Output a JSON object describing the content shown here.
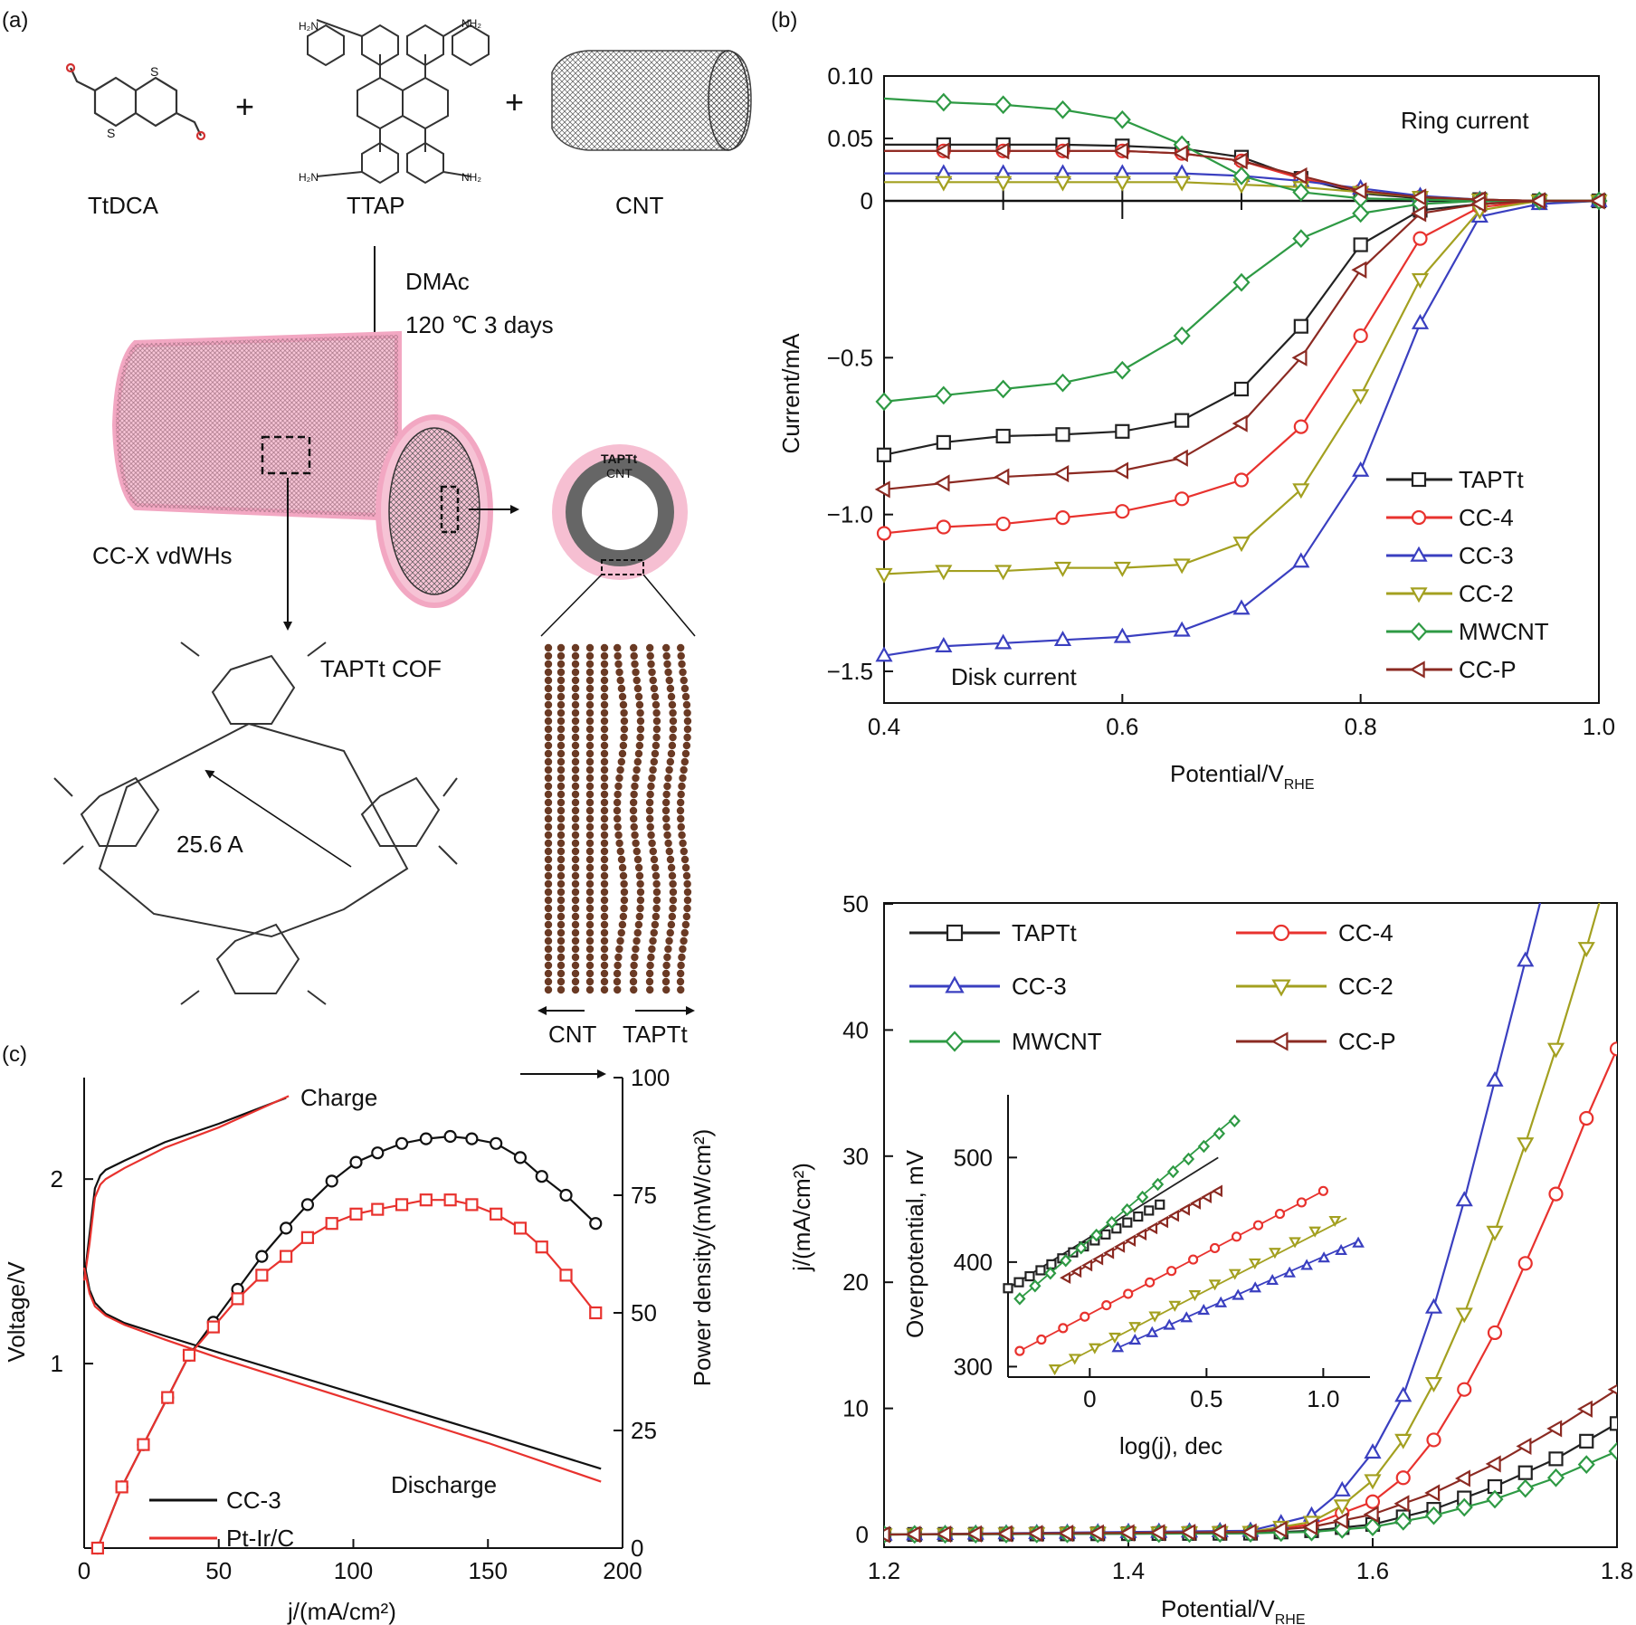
{
  "panel_labels": {
    "a": "(a)",
    "b": "(b)",
    "c": "(c)"
  },
  "scheme": {
    "reagents": [
      "TtDCA",
      "TTAP",
      "CNT"
    ],
    "plus": "+",
    "conditions": [
      "DMAc",
      "120 ℃  3 days"
    ],
    "product": "CC-X vdWHs",
    "cof_label": "TAPTt COF",
    "pore_size": "25.6 A",
    "ring_outer": "TAPTt",
    "ring_inner": "CNT",
    "slab_labels": [
      "CNT",
      "TAPTt"
    ]
  },
  "icons": [
    "thiophene-aldehyde-molecule-icon",
    "tetra-amine-pyrene-molecule-icon",
    "carbon-nanotube-icon",
    "cof-coated-nanotube-icon",
    "cof-hexagon-structure-icon",
    "cross-section-ring-icon",
    "atomic-slab-icon"
  ],
  "colors": {
    "TAPTt": "#222222",
    "CC-4": "#e8322e",
    "CC-3": "#3a3fc0",
    "CC-2": "#a3a020",
    "MWCNT": "#2e9a44",
    "CC-P": "#8b2a22",
    "pink": "#f2a7c2"
  },
  "chart_data": [
    {
      "id": "b",
      "type": "line",
      "xlabel": "Potential/V",
      "xlabel_sub": "RHE",
      "ylabel": "Current/mA",
      "xlim": [
        0.4,
        1.0
      ],
      "ylim": [
        -1.57,
        0.1
      ],
      "xticks": [
        0.4,
        0.6,
        0.8,
        1.0
      ],
      "xtick_labels": [
        "0.4",
        "0.6",
        "0.8",
        "1.0"
      ],
      "yticks": [
        0.1,
        0.05,
        0,
        -0.5,
        -1.0,
        -1.5
      ],
      "ytick_labels": [
        "0.10",
        "0.05",
        "0",
        "−0.5",
        "−1.0",
        "−1.5"
      ],
      "annotations": [
        "Ring current",
        "Disk current"
      ],
      "legend": [
        "TAPTt",
        "CC-4",
        "CC-3",
        "CC-2",
        "MWCNT",
        "CC-P"
      ],
      "x": [
        0.4,
        0.45,
        0.5,
        0.55,
        0.6,
        0.65,
        0.7,
        0.75,
        0.8,
        0.85,
        0.9,
        0.95,
        1.0
      ],
      "series": [
        {
          "name": "TAPTt",
          "marker": "square",
          "ring": [
            0.045,
            0.045,
            0.045,
            0.045,
            0.044,
            0.042,
            0.035,
            0.018,
            0.006,
            0.002,
            0.001,
            0.0,
            0.0
          ],
          "disk": [
            -0.81,
            -0.77,
            -0.75,
            -0.745,
            -0.735,
            -0.7,
            -0.6,
            -0.4,
            -0.14,
            -0.03,
            -0.01,
            0.0,
            0.0
          ]
        },
        {
          "name": "CC-4",
          "marker": "circle",
          "ring": [
            0.04,
            0.04,
            0.04,
            0.04,
            0.04,
            0.038,
            0.032,
            0.018,
            0.008,
            0.003,
            0.001,
            0.0,
            0.0
          ],
          "disk": [
            -1.06,
            -1.04,
            -1.03,
            -1.01,
            -0.99,
            -0.95,
            -0.89,
            -0.72,
            -0.43,
            -0.12,
            -0.02,
            0.0,
            0.0
          ]
        },
        {
          "name": "CC-3",
          "marker": "triangle-up",
          "ring": [
            0.022,
            0.022,
            0.022,
            0.022,
            0.022,
            0.022,
            0.02,
            0.016,
            0.01,
            0.004,
            0.001,
            0.0,
            0.0
          ],
          "disk": [
            -1.45,
            -1.42,
            -1.41,
            -1.4,
            -1.39,
            -1.37,
            -1.3,
            -1.15,
            -0.86,
            -0.39,
            -0.05,
            -0.01,
            0.0
          ]
        },
        {
          "name": "CC-2",
          "marker": "triangle-down",
          "ring": [
            0.015,
            0.015,
            0.015,
            0.015,
            0.015,
            0.015,
            0.013,
            0.011,
            0.007,
            0.003,
            0.001,
            0.0,
            0.0
          ],
          "disk": [
            -1.19,
            -1.18,
            -1.18,
            -1.17,
            -1.17,
            -1.16,
            -1.09,
            -0.92,
            -0.62,
            -0.25,
            -0.03,
            0.0,
            0.0
          ]
        },
        {
          "name": "MWCNT",
          "marker": "diamond",
          "ring": [
            0.082,
            0.079,
            0.077,
            0.073,
            0.065,
            0.045,
            0.02,
            0.007,
            0.002,
            0.001,
            0.0,
            0.0,
            0.0
          ],
          "disk": [
            -0.64,
            -0.62,
            -0.6,
            -0.58,
            -0.54,
            -0.43,
            -0.26,
            -0.12,
            -0.04,
            -0.01,
            0.0,
            0.0,
            0.0
          ]
        },
        {
          "name": "CC-P",
          "marker": "triangle-left",
          "ring": [
            0.04,
            0.04,
            0.04,
            0.04,
            0.04,
            0.038,
            0.032,
            0.02,
            0.008,
            0.003,
            0.001,
            0.0,
            0.0
          ],
          "disk": [
            -0.92,
            -0.9,
            -0.88,
            -0.87,
            -0.86,
            -0.82,
            -0.71,
            -0.5,
            -0.22,
            -0.04,
            -0.01,
            0.0,
            0.0
          ]
        }
      ]
    },
    {
      "id": "c",
      "type": "line",
      "xlabel": "j/(mA/cm²)",
      "ylabel_left": "Voltage/V",
      "ylabel_right": "Power density/(mW/cm²)",
      "xlim": [
        0,
        200
      ],
      "ylim_left": [
        0,
        2.55
      ],
      "ylim_right": [
        0,
        100
      ],
      "xticks": [
        0,
        50,
        100,
        150,
        200
      ],
      "yticks_left": [
        1,
        2
      ],
      "yticks_right": [
        0,
        25,
        50,
        75,
        100
      ],
      "annotations": [
        "Charge",
        "Discharge"
      ],
      "legend": [
        "CC-3",
        "Pt-Ir/C"
      ],
      "series": [
        {
          "name": "CC-3 charge",
          "color": "#111111",
          "x": [
            0,
            2,
            4,
            6,
            8,
            15,
            30,
            50,
            75
          ],
          "y": [
            1.45,
            1.7,
            1.95,
            2.02,
            2.05,
            2.1,
            2.2,
            2.3,
            2.44
          ]
        },
        {
          "name": "Pt-Ir/C charge",
          "color": "#e8322e",
          "x": [
            0,
            2,
            4,
            6,
            8,
            15,
            30,
            50,
            76
          ],
          "y": [
            1.45,
            1.65,
            1.9,
            1.97,
            2.0,
            2.06,
            2.17,
            2.28,
            2.45
          ]
        },
        {
          "name": "CC-3 discharge",
          "color": "#111111",
          "x": [
            0,
            2,
            4,
            8,
            15,
            30,
            50,
            100,
            150,
            192
          ],
          "y": [
            1.55,
            1.4,
            1.33,
            1.27,
            1.22,
            1.15,
            1.06,
            0.84,
            0.62,
            0.43
          ]
        },
        {
          "name": "Pt-Ir/C discharge",
          "color": "#e8322e",
          "x": [
            0,
            2,
            4,
            8,
            15,
            30,
            50,
            100,
            150,
            192
          ],
          "y": [
            1.52,
            1.38,
            1.31,
            1.26,
            1.21,
            1.13,
            1.03,
            0.8,
            0.57,
            0.36
          ]
        },
        {
          "name": "CC-3 power",
          "color": "#111111",
          "marker": "circle",
          "x": [
            5,
            14,
            22,
            31,
            39,
            48,
            57,
            66,
            75,
            83,
            92,
            101,
            109,
            118,
            127,
            136,
            144,
            153,
            162,
            170,
            179,
            190
          ],
          "y": [
            0,
            13,
            22,
            32,
            41,
            48,
            55,
            62,
            68,
            73,
            78,
            82,
            84,
            86,
            87,
            87.5,
            87,
            86,
            83,
            79,
            75,
            69
          ]
        },
        {
          "name": "Pt-Ir/C power",
          "color": "#e8322e",
          "marker": "square",
          "x": [
            5,
            14,
            22,
            31,
            39,
            48,
            57,
            66,
            75,
            83,
            92,
            101,
            109,
            118,
            127,
            136,
            144,
            153,
            162,
            170,
            179,
            190
          ],
          "y": [
            0,
            13,
            22,
            32,
            41,
            47,
            53,
            58,
            62,
            66,
            69,
            71,
            72,
            73,
            74,
            74,
            73,
            71,
            68,
            64,
            58,
            50
          ]
        }
      ]
    },
    {
      "id": "d",
      "type": "line",
      "xlabel": "Potential/V",
      "xlabel_sub": "RHE",
      "ylabel": "j/(mA/cm²)",
      "xlim": [
        1.2,
        1.8
      ],
      "ylim": [
        -1,
        50
      ],
      "xticks": [
        1.2,
        1.4,
        1.6,
        1.8
      ],
      "yticks": [
        0,
        10,
        20,
        30,
        40,
        50
      ],
      "legend": [
        "TAPTt",
        "CC-4",
        "CC-3",
        "CC-2",
        "MWCNT",
        "CC-P"
      ],
      "series": [
        {
          "name": "TAPTt",
          "marker": "square",
          "x": [
            1.2,
            1.5,
            1.55,
            1.6,
            1.65,
            1.7,
            1.75,
            1.8
          ],
          "y": [
            0,
            0.1,
            0.3,
            0.8,
            2.0,
            3.8,
            6.0,
            8.8
          ]
        },
        {
          "name": "CC-4",
          "marker": "circle",
          "x": [
            1.2,
            1.5,
            1.55,
            1.6,
            1.625,
            1.65,
            1.675,
            1.7,
            1.725,
            1.75,
            1.775,
            1.8
          ],
          "y": [
            0,
            0.2,
            0.8,
            2.6,
            4.5,
            7.5,
            11.5,
            16.0,
            21.5,
            27.0,
            33.0,
            38.5
          ]
        },
        {
          "name": "CC-3",
          "marker": "triangle-up",
          "x": [
            1.2,
            1.5,
            1.55,
            1.575,
            1.6,
            1.625,
            1.65,
            1.675,
            1.7,
            1.725,
            1.75
          ],
          "y": [
            0,
            0.3,
            1.5,
            3.5,
            6.5,
            11.0,
            18.0,
            26.5,
            36.0,
            45.5,
            55.0
          ]
        },
        {
          "name": "CC-2",
          "marker": "triangle-down",
          "x": [
            1.2,
            1.5,
            1.55,
            1.575,
            1.6,
            1.625,
            1.65,
            1.675,
            1.7,
            1.725,
            1.75,
            1.775,
            1.8
          ],
          "y": [
            0,
            0.2,
            1.0,
            2.3,
            4.3,
            7.5,
            12.0,
            17.5,
            24.0,
            31.0,
            38.5,
            46.5,
            55.0
          ]
        },
        {
          "name": "MWCNT",
          "marker": "diamond",
          "x": [
            1.2,
            1.5,
            1.55,
            1.6,
            1.65,
            1.7,
            1.75,
            1.8
          ],
          "y": [
            0,
            0.1,
            0.2,
            0.6,
            1.5,
            2.8,
            4.5,
            6.6
          ]
        },
        {
          "name": "CC-P",
          "marker": "triangle-left",
          "x": [
            1.2,
            1.5,
            1.55,
            1.6,
            1.65,
            1.7,
            1.75,
            1.8
          ],
          "y": [
            0,
            0.2,
            0.6,
            1.6,
            3.3,
            5.6,
            8.4,
            11.5
          ]
        }
      ],
      "inset": {
        "xlabel": "log(j), dec",
        "ylabel": "Overpotential, mV",
        "xlim": [
          -0.35,
          1.2
        ],
        "ylim": [
          290,
          560
        ],
        "xticks": [
          0,
          0.5,
          1.0
        ],
        "xtick_labels": [
          "0",
          "0.5",
          "1.0"
        ],
        "yticks": [
          300,
          400,
          500
        ],
        "series": [
          {
            "name": "TAPTt",
            "x0": -0.35,
            "x1": 0.3,
            "y0": 375,
            "y1": 455,
            "fit_x1": 0.55,
            "fit_y1": 500
          },
          {
            "name": "MWCNT",
            "x0": -0.3,
            "x1": 0.62,
            "y0": 365,
            "y1": 535,
            "fit_x1": 0.62,
            "fit_y1": 538
          },
          {
            "name": "CC-P",
            "x0": -0.1,
            "x1": 0.55,
            "y0": 385,
            "y1": 468,
            "fit_x1": 0.55,
            "fit_y1": 470
          },
          {
            "name": "CC-4",
            "x0": -0.3,
            "x1": 1.0,
            "y0": 315,
            "y1": 468,
            "fit_x1": 1.0,
            "fit_y1": 468
          },
          {
            "name": "CC-2",
            "x0": -0.15,
            "x1": 1.05,
            "y0": 298,
            "y1": 440,
            "fit_x1": 1.1,
            "fit_y1": 442
          },
          {
            "name": "CC-3",
            "x0": 0.12,
            "x1": 1.15,
            "y0": 318,
            "y1": 418,
            "fit_x1": 1.15,
            "fit_y1": 420
          }
        ]
      }
    }
  ]
}
